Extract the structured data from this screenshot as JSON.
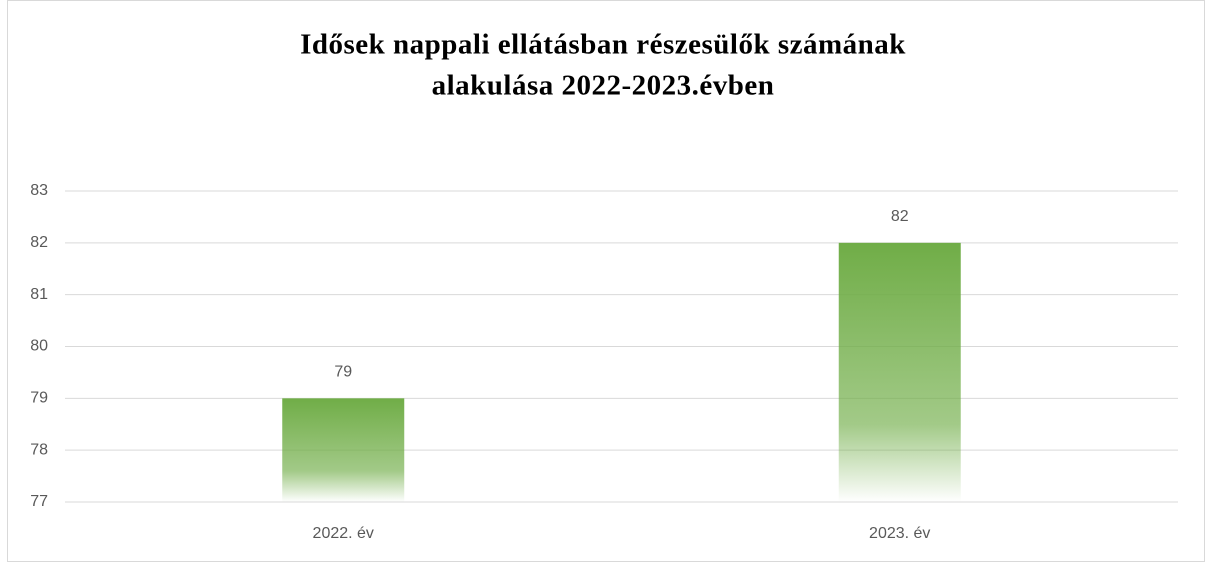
{
  "chart_data": {
    "type": "bar",
    "title": [
      "Idősek nappali ellátásban részesülők számának",
      "alakulása 2022-2023.évben"
    ],
    "categories": [
      "2022. év",
      "2023. év"
    ],
    "values": [
      79,
      82
    ],
    "color": "#70ad47",
    "ylim": [
      77,
      83
    ],
    "yticks": [
      77,
      78,
      79,
      80,
      81,
      82,
      83
    ],
    "grid": true
  }
}
